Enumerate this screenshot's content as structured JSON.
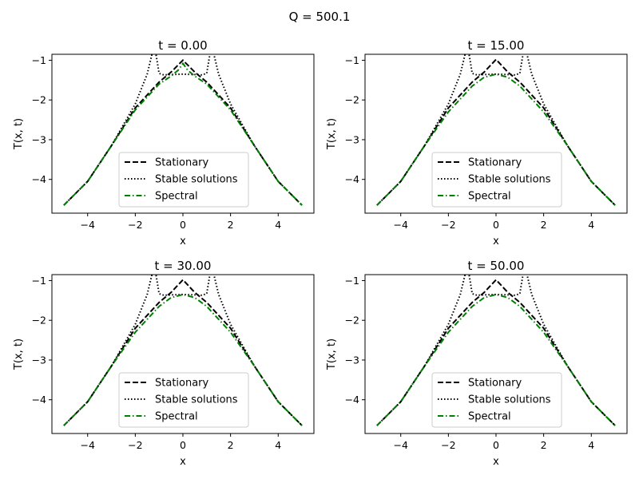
{
  "figure": {
    "suptitle": "Q = 500.1"
  },
  "chart_data": [
    {
      "type": "line",
      "title": "t = 0.00",
      "xlabel": "x",
      "ylabel": "T(x, t)",
      "xlim": [
        -5.5,
        5.5
      ],
      "ylim": [
        -4.85,
        -0.85
      ],
      "xticks": [
        -4,
        -2,
        0,
        2,
        4
      ],
      "yticks": [
        -4,
        -3,
        -2,
        -1
      ],
      "grid": false,
      "legend_position": "lower center",
      "series": [
        {
          "name": "Stationary",
          "style": "dashed",
          "color": "#000000",
          "x": [
            -5,
            -4,
            -3,
            -2,
            -1,
            -0.5,
            0,
            0.5,
            1,
            2,
            3,
            4,
            5
          ],
          "y": [
            -4.65,
            -4.05,
            -3.15,
            -2.2,
            -1.55,
            -1.3,
            -1.0,
            -1.3,
            -1.55,
            -2.2,
            -3.15,
            -4.05,
            -4.65
          ]
        },
        {
          "name": "Stable solutions",
          "style": "dotted",
          "color": "#000000",
          "x": [
            -5,
            -4,
            -3,
            -2,
            -1.5,
            -1.2,
            -1.0,
            -0.8,
            -0.5,
            0,
            0.5,
            0.8,
            1.0,
            1.2,
            1.5,
            2,
            3,
            4,
            5
          ],
          "y": [
            -4.65,
            -4.05,
            -3.15,
            -2.1,
            -1.35,
            -0.6,
            -1.33,
            -1.37,
            -1.36,
            -1.35,
            -1.36,
            -1.37,
            -1.33,
            -0.6,
            -1.35,
            -2.1,
            -3.15,
            -4.05,
            -4.65
          ]
        },
        {
          "name": "Spectral",
          "style": "dashdot",
          "color": "#008000",
          "x": [
            -5,
            -4,
            -3,
            -2,
            -1,
            -0.5,
            -0.2,
            0,
            0.2,
            0.5,
            1,
            2,
            3,
            4,
            5
          ],
          "y": [
            -4.65,
            -4.05,
            -3.15,
            -2.25,
            -1.6,
            -1.4,
            -1.25,
            -1.08,
            -1.25,
            -1.4,
            -1.6,
            -2.25,
            -3.15,
            -4.05,
            -4.65
          ]
        }
      ]
    },
    {
      "type": "line",
      "title": "t = 15.00",
      "xlabel": "x",
      "ylabel": "T(x, t)",
      "xlim": [
        -5.5,
        5.5
      ],
      "ylim": [
        -4.85,
        -0.85
      ],
      "xticks": [
        -4,
        -2,
        0,
        2,
        4
      ],
      "yticks": [
        -4,
        -3,
        -2,
        -1
      ],
      "grid": false,
      "legend_position": "lower center",
      "series": [
        {
          "name": "Stationary",
          "style": "dashed",
          "color": "#000000",
          "x": [
            -5,
            -4,
            -3,
            -2,
            -1,
            -0.5,
            0,
            0.5,
            1,
            2,
            3,
            4,
            5
          ],
          "y": [
            -4.65,
            -4.05,
            -3.15,
            -2.2,
            -1.55,
            -1.3,
            -0.98,
            -1.3,
            -1.55,
            -2.2,
            -3.15,
            -4.05,
            -4.65
          ]
        },
        {
          "name": "Stable solutions",
          "style": "dotted",
          "color": "#000000",
          "x": [
            -5,
            -4,
            -3,
            -2,
            -1.5,
            -1.2,
            -1.0,
            -0.8,
            -0.5,
            0,
            0.5,
            0.8,
            1.0,
            1.2,
            1.5,
            2,
            3,
            4,
            5
          ],
          "y": [
            -4.65,
            -4.05,
            -3.15,
            -2.1,
            -1.35,
            -0.6,
            -1.33,
            -1.37,
            -1.36,
            -1.35,
            -1.36,
            -1.37,
            -1.33,
            -0.6,
            -1.35,
            -2.1,
            -3.15,
            -4.05,
            -4.65
          ]
        },
        {
          "name": "Spectral",
          "style": "dashdot",
          "color": "#008000",
          "x": [
            -5,
            -4,
            -3,
            -2,
            -1,
            -0.5,
            0,
            0.5,
            1,
            2,
            3,
            4,
            5
          ],
          "y": [
            -4.65,
            -4.05,
            -3.15,
            -2.3,
            -1.65,
            -1.43,
            -1.35,
            -1.43,
            -1.65,
            -2.3,
            -3.15,
            -4.05,
            -4.65
          ]
        }
      ]
    },
    {
      "type": "line",
      "title": "t = 30.00",
      "xlabel": "x",
      "ylabel": "T(x, t)",
      "xlim": [
        -5.5,
        5.5
      ],
      "ylim": [
        -4.85,
        -0.85
      ],
      "xticks": [
        -4,
        -2,
        0,
        2,
        4
      ],
      "yticks": [
        -4,
        -3,
        -2,
        -1
      ],
      "grid": false,
      "legend_position": "lower center",
      "series": [
        {
          "name": "Stationary",
          "style": "dashed",
          "color": "#000000",
          "x": [
            -5,
            -4,
            -3,
            -2,
            -1,
            -0.5,
            0,
            0.5,
            1,
            2,
            3,
            4,
            5
          ],
          "y": [
            -4.65,
            -4.05,
            -3.15,
            -2.2,
            -1.55,
            -1.3,
            -0.98,
            -1.3,
            -1.55,
            -2.2,
            -3.15,
            -4.05,
            -4.65
          ]
        },
        {
          "name": "Stable solutions",
          "style": "dotted",
          "color": "#000000",
          "x": [
            -5,
            -4,
            -3,
            -2,
            -1.5,
            -1.2,
            -1.0,
            -0.8,
            -0.5,
            0,
            0.5,
            0.8,
            1.0,
            1.2,
            1.5,
            2,
            3,
            4,
            5
          ],
          "y": [
            -4.65,
            -4.05,
            -3.15,
            -2.1,
            -1.35,
            -0.6,
            -1.33,
            -1.37,
            -1.36,
            -1.35,
            -1.36,
            -1.37,
            -1.33,
            -0.6,
            -1.35,
            -2.1,
            -3.15,
            -4.05,
            -4.65
          ]
        },
        {
          "name": "Spectral",
          "style": "dashdot",
          "color": "#008000",
          "x": [
            -5,
            -4,
            -3,
            -2,
            -1,
            -0.5,
            0,
            0.5,
            1,
            2,
            3,
            4,
            5
          ],
          "y": [
            -4.65,
            -4.05,
            -3.15,
            -2.3,
            -1.65,
            -1.43,
            -1.35,
            -1.43,
            -1.65,
            -2.3,
            -3.15,
            -4.05,
            -4.65
          ]
        }
      ]
    },
    {
      "type": "line",
      "title": "t = 50.00",
      "xlabel": "x",
      "ylabel": "T(x, t)",
      "xlim": [
        -5.5,
        5.5
      ],
      "ylim": [
        -4.85,
        -0.85
      ],
      "xticks": [
        -4,
        -2,
        0,
        2,
        4
      ],
      "yticks": [
        -4,
        -3,
        -2,
        -1
      ],
      "grid": false,
      "legend_position": "lower center",
      "series": [
        {
          "name": "Stationary",
          "style": "dashed",
          "color": "#000000",
          "x": [
            -5,
            -4,
            -3,
            -2,
            -1,
            -0.5,
            0,
            0.5,
            1,
            2,
            3,
            4,
            5
          ],
          "y": [
            -4.65,
            -4.05,
            -3.15,
            -2.2,
            -1.55,
            -1.3,
            -0.98,
            -1.3,
            -1.55,
            -2.2,
            -3.15,
            -4.05,
            -4.65
          ]
        },
        {
          "name": "Stable solutions",
          "style": "dotted",
          "color": "#000000",
          "x": [
            -5,
            -4,
            -3,
            -2,
            -1.5,
            -1.2,
            -1.0,
            -0.8,
            -0.5,
            0,
            0.5,
            0.8,
            1.0,
            1.2,
            1.5,
            2,
            3,
            4,
            5
          ],
          "y": [
            -4.65,
            -4.05,
            -3.15,
            -2.1,
            -1.35,
            -0.6,
            -1.33,
            -1.37,
            -1.36,
            -1.35,
            -1.36,
            -1.37,
            -1.33,
            -0.6,
            -1.35,
            -2.1,
            -3.15,
            -4.05,
            -4.65
          ]
        },
        {
          "name": "Spectral",
          "style": "dashdot",
          "color": "#008000",
          "x": [
            -5,
            -4,
            -3,
            -2,
            -1,
            -0.5,
            0,
            0.5,
            1,
            2,
            3,
            4,
            5
          ],
          "y": [
            -4.65,
            -4.05,
            -3.15,
            -2.3,
            -1.65,
            -1.43,
            -1.35,
            -1.43,
            -1.65,
            -2.3,
            -3.15,
            -4.05,
            -4.65
          ]
        }
      ]
    }
  ]
}
